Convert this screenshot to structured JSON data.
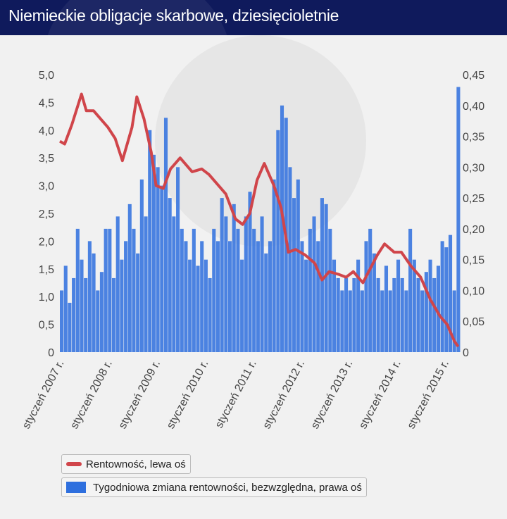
{
  "title": "Niemieckie obligacje skarbowe, dziesięcioletnie",
  "chart_data": {
    "type": "line+bar",
    "title": "Niemieckie obligacje skarbowe, dziesięcioletnie",
    "x_range": [
      2007.0,
      2015.3
    ],
    "x_ticks": [
      2007,
      2008,
      2009,
      2010,
      2011,
      2012,
      2013,
      2014,
      2015
    ],
    "x_tick_labels": [
      "styczeń 2007 r.",
      "styczeń 2008 r.",
      "styczeń 2009 r.",
      "styczeń 2010 r.",
      "styczeń 2011 r.",
      "styczeń 2012 r.",
      "styczeń 2013 r.",
      "styczeń 2014 r.",
      "styczeń 2015 r."
    ],
    "left_axis": {
      "range": [
        0,
        5
      ],
      "ticks": [
        "0",
        "0,5",
        "1,0",
        "1,5",
        "2,0",
        "2,5",
        "3,0",
        "3,5",
        "4,0",
        "4,5",
        "5,0"
      ]
    },
    "right_axis": {
      "range": [
        0,
        0.45
      ],
      "ticks": [
        "0",
        "0,05",
        "0,10",
        "0,15",
        "0,20",
        "0,25",
        "0,30",
        "0,35",
        "0,40",
        "0,45"
      ]
    },
    "series": [
      {
        "name": "Rentowność, lewa oś",
        "color": "#d0454a",
        "axis": "left",
        "x": [
          2007.0,
          2007.1,
          2007.25,
          2007.45,
          2007.55,
          2007.7,
          2007.85,
          2008.0,
          2008.15,
          2008.3,
          2008.5,
          2008.6,
          2008.75,
          2008.9,
          2009.0,
          2009.15,
          2009.3,
          2009.5,
          2009.75,
          2009.95,
          2010.1,
          2010.3,
          2010.45,
          2010.65,
          2010.8,
          2010.95,
          2011.1,
          2011.25,
          2011.45,
          2011.6,
          2011.75,
          2011.9,
          2012.1,
          2012.3,
          2012.45,
          2012.6,
          2012.8,
          2012.95,
          2013.1,
          2013.3,
          2013.45,
          2013.6,
          2013.75,
          2013.95,
          2014.1,
          2014.3,
          2014.5,
          2014.7,
          2014.9,
          2015.05,
          2015.2,
          2015.28
        ],
        "values": [
          3.8,
          3.75,
          4.1,
          4.65,
          4.35,
          4.35,
          4.2,
          4.05,
          3.85,
          3.45,
          4.05,
          4.6,
          4.2,
          3.6,
          3.0,
          2.95,
          3.3,
          3.5,
          3.25,
          3.3,
          3.2,
          3.0,
          2.85,
          2.4,
          2.3,
          2.5,
          3.1,
          3.4,
          3.0,
          2.6,
          1.8,
          1.85,
          1.75,
          1.6,
          1.3,
          1.45,
          1.4,
          1.35,
          1.45,
          1.25,
          1.5,
          1.75,
          1.95,
          1.8,
          1.8,
          1.55,
          1.35,
          0.95,
          0.65,
          0.5,
          0.2,
          0.1
        ]
      },
      {
        "name": "Tygodniowa zmiana rentowności, bezwzględna, prawa oś",
        "color": "#2e6fde",
        "axis": "right",
        "x_start": 2007.0,
        "x_step": 0.0833,
        "values": [
          0.1,
          0.14,
          0.08,
          0.12,
          0.2,
          0.15,
          0.12,
          0.18,
          0.16,
          0.1,
          0.13,
          0.2,
          0.2,
          0.12,
          0.22,
          0.15,
          0.18,
          0.24,
          0.2,
          0.16,
          0.28,
          0.22,
          0.36,
          0.32,
          0.3,
          0.27,
          0.38,
          0.25,
          0.22,
          0.3,
          0.2,
          0.18,
          0.15,
          0.2,
          0.14,
          0.18,
          0.15,
          0.12,
          0.2,
          0.18,
          0.25,
          0.22,
          0.18,
          0.24,
          0.2,
          0.15,
          0.22,
          0.26,
          0.2,
          0.18,
          0.22,
          0.16,
          0.18,
          0.28,
          0.36,
          0.4,
          0.38,
          0.3,
          0.25,
          0.28,
          0.18,
          0.15,
          0.2,
          0.22,
          0.18,
          0.25,
          0.24,
          0.2,
          0.15,
          0.12,
          0.1,
          0.12,
          0.1,
          0.12,
          0.15,
          0.1,
          0.18,
          0.2,
          0.16,
          0.12,
          0.1,
          0.14,
          0.1,
          0.12,
          0.15,
          0.12,
          0.1,
          0.2,
          0.15,
          0.12,
          0.1,
          0.13,
          0.15,
          0.12,
          0.14,
          0.18,
          0.17,
          0.19,
          0.1,
          0.43
        ]
      }
    ],
    "legend": [
      "Rentowność, lewa oś",
      "Tygodniowa zmiana rentowności, bezwzględna, prawa oś"
    ],
    "legend_position": "bottom-left"
  }
}
